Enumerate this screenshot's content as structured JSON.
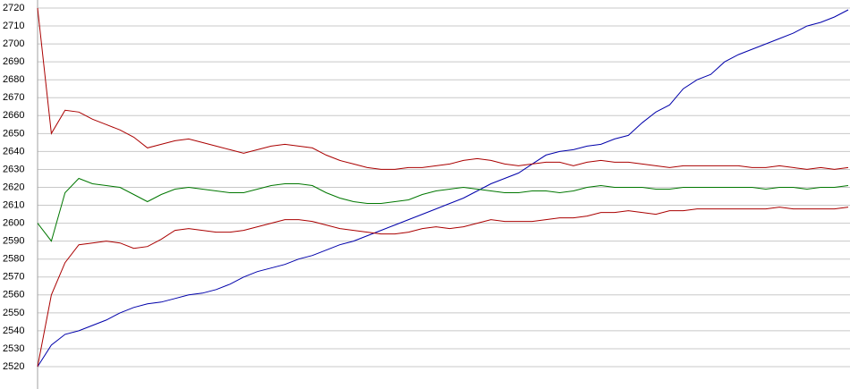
{
  "chart_data": {
    "type": "line",
    "ylim": [
      2520,
      2720
    ],
    "yticks": [
      2520,
      2530,
      2540,
      2550,
      2560,
      2570,
      2580,
      2590,
      2600,
      2610,
      2620,
      2630,
      2640,
      2650,
      2660,
      2670,
      2680,
      2690,
      2700,
      2710,
      2720
    ],
    "grid": true,
    "series": [
      {
        "color": "#0000aa",
        "values": [
          2520,
          2532,
          2538,
          2540,
          2543,
          2546,
          2550,
          2553,
          2555,
          2556,
          2558,
          2560,
          2561,
          2563,
          2566,
          2570,
          2573,
          2575,
          2577,
          2580,
          2582,
          2585,
          2588,
          2590,
          2593,
          2596,
          2599,
          2602,
          2605,
          2608,
          2611,
          2614,
          2618,
          2622,
          2625,
          2628,
          2633,
          2638,
          2640,
          2641,
          2643,
          2644,
          2647,
          2649,
          2656,
          2662,
          2666,
          2675,
          2680,
          2683,
          2690,
          2694,
          2697,
          2700,
          2703,
          2706,
          2710,
          2712,
          2715,
          2719
        ]
      },
      {
        "color": "#aa0000",
        "values": [
          2720,
          2650,
          2663,
          2662,
          2658,
          2655,
          2652,
          2648,
          2642,
          2644,
          2646,
          2647,
          2645,
          2643,
          2641,
          2639,
          2641,
          2643,
          2644,
          2643,
          2642,
          2638,
          2635,
          2633,
          2631,
          2630,
          2630,
          2631,
          2631,
          2632,
          2633,
          2635,
          2636,
          2635,
          2633,
          2632,
          2633,
          2634,
          2634,
          2632,
          2634,
          2635,
          2634,
          2634,
          2633,
          2632,
          2631,
          2632,
          2632,
          2632,
          2632,
          2632,
          2631,
          2631,
          2632,
          2631,
          2630,
          2631,
          2630,
          2631
        ]
      },
      {
        "color": "#007700",
        "values": [
          2600,
          2590,
          2617,
          2625,
          2622,
          2621,
          2620,
          2616,
          2612,
          2616,
          2619,
          2620,
          2619,
          2618,
          2617,
          2617,
          2619,
          2621,
          2622,
          2622,
          2621,
          2617,
          2614,
          2612,
          2611,
          2611,
          2612,
          2613,
          2616,
          2618,
          2619,
          2620,
          2619,
          2618,
          2617,
          2617,
          2618,
          2618,
          2617,
          2618,
          2620,
          2621,
          2620,
          2620,
          2620,
          2619,
          2619,
          2620,
          2620,
          2620,
          2620,
          2620,
          2620,
          2619,
          2620,
          2620,
          2619,
          2620,
          2620,
          2621
        ]
      },
      {
        "color": "#aa0000",
        "values": [
          2520,
          2560,
          2578,
          2588,
          2589,
          2590,
          2589,
          2586,
          2587,
          2591,
          2596,
          2597,
          2596,
          2595,
          2595,
          2596,
          2598,
          2600,
          2602,
          2602,
          2601,
          2599,
          2597,
          2596,
          2595,
          2594,
          2594,
          2595,
          2597,
          2598,
          2597,
          2598,
          2600,
          2602,
          2601,
          2601,
          2601,
          2602,
          2603,
          2603,
          2604,
          2606,
          2606,
          2607,
          2606,
          2605,
          2607,
          2607,
          2608,
          2608,
          2608,
          2608,
          2608,
          2608,
          2609,
          2608,
          2608,
          2608,
          2608,
          2609
        ]
      }
    ]
  }
}
